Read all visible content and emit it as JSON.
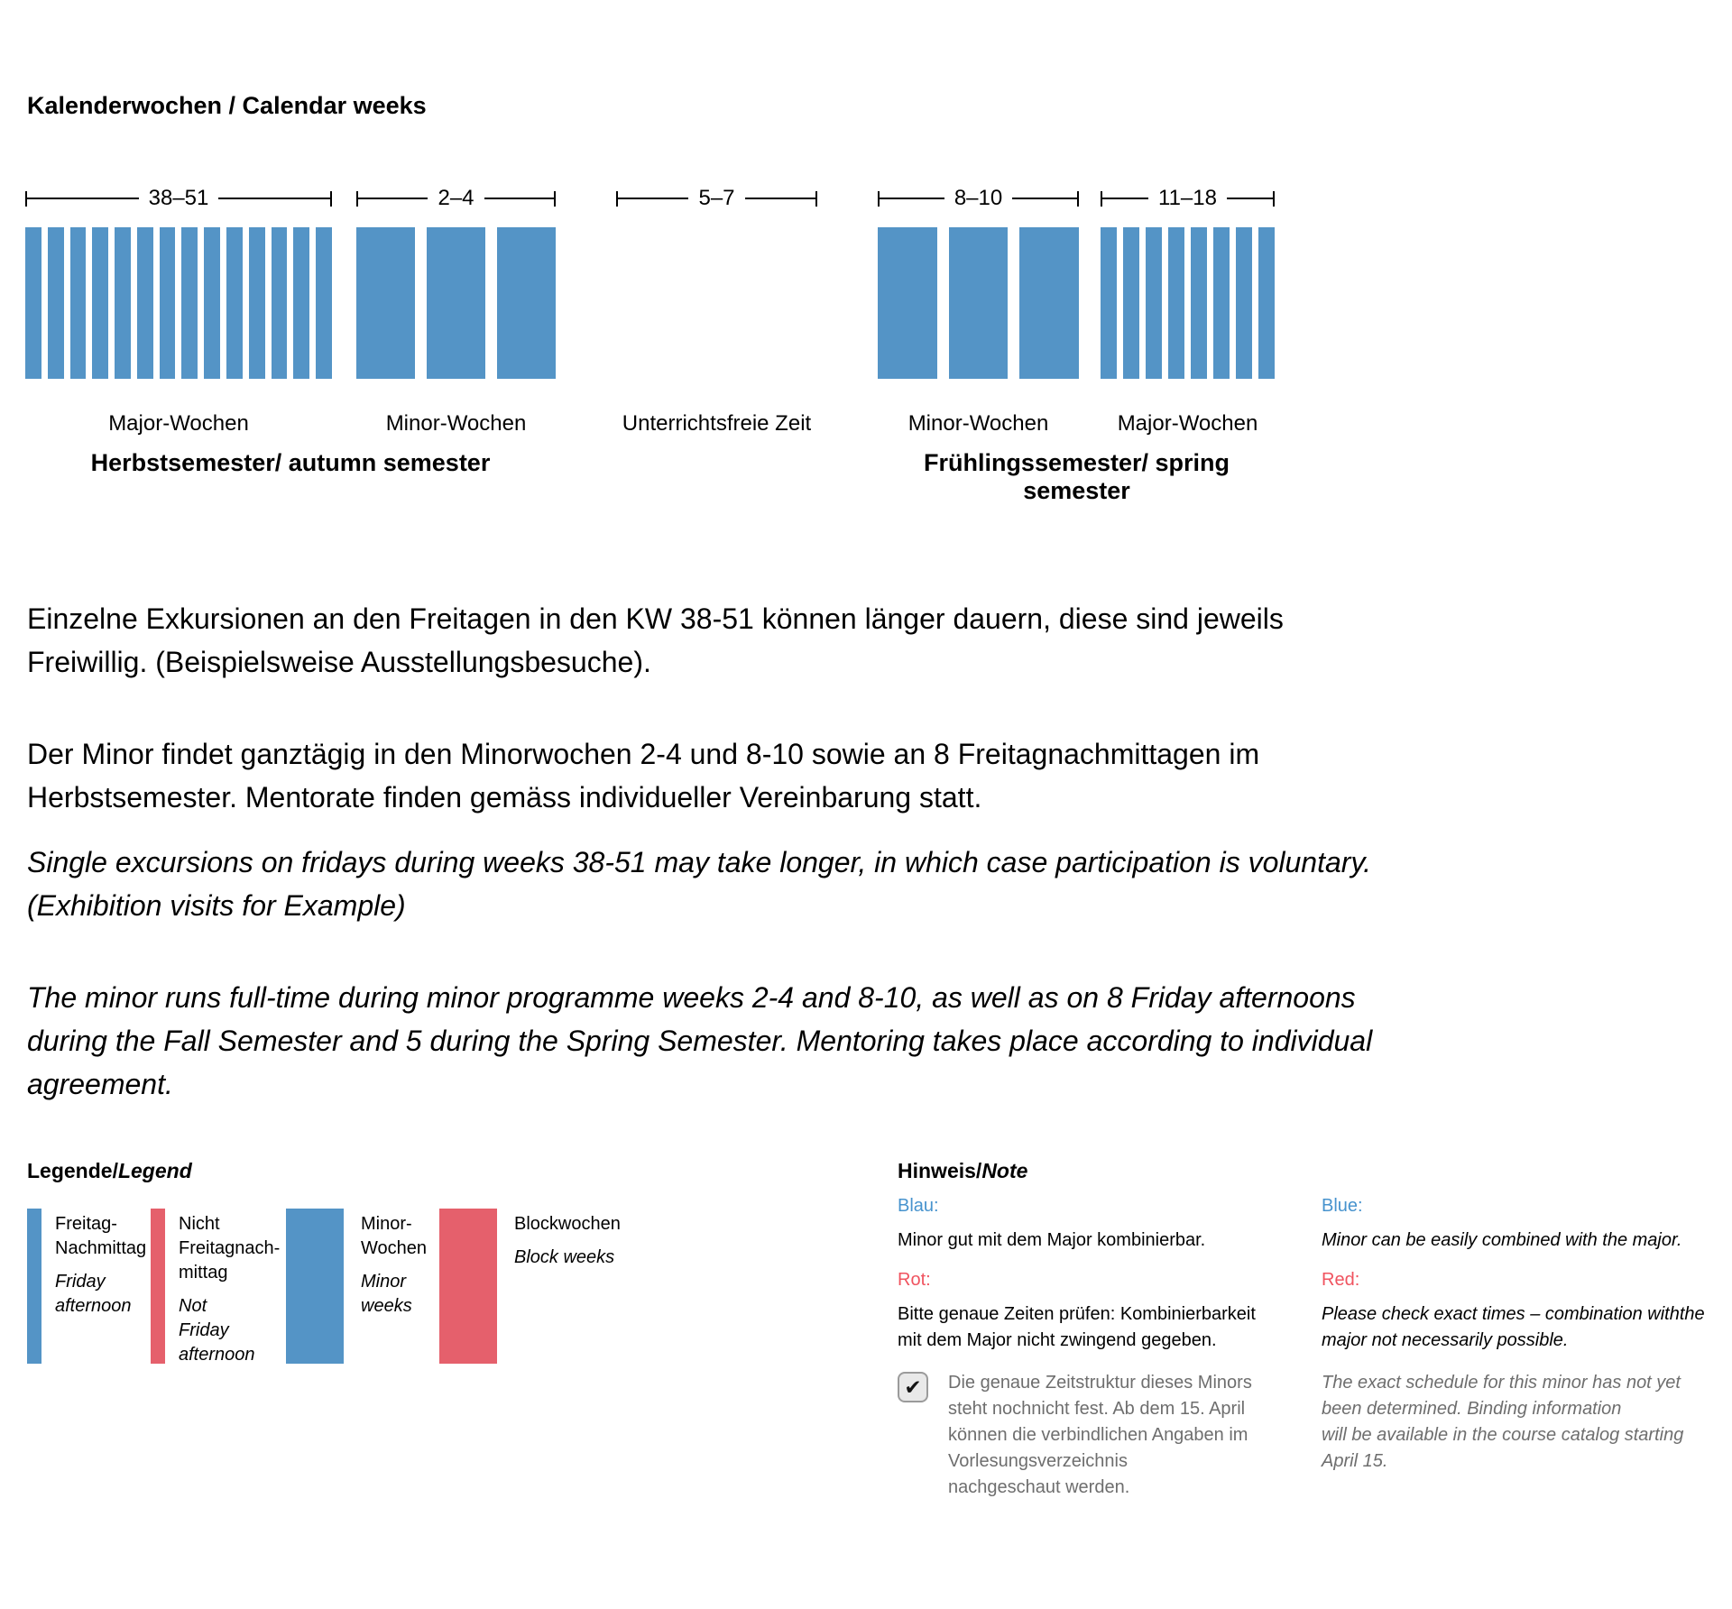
{
  "title": "Kalenderwochen / Calendar weeks",
  "chart_data": {
    "type": "bar",
    "title": "Kalenderwochen / Calendar weeks",
    "x_unit": "calendar week number",
    "groups": [
      {
        "range": "38–51",
        "weeks": 14,
        "bar_style": "thin",
        "label": "Major-Wochen",
        "semester": "autumn"
      },
      {
        "range": "2–4",
        "weeks": 3,
        "bar_style": "wide",
        "label": "Minor-Wochen",
        "semester": "autumn"
      },
      {
        "range": "5–7",
        "weeks": 0,
        "bar_style": "none",
        "label": "Unterrichtsfreie Zeit",
        "semester": ""
      },
      {
        "range": "8–10",
        "weeks": 3,
        "bar_style": "wide",
        "label": "Minor-Wochen",
        "semester": "spring"
      },
      {
        "range": "11–18",
        "weeks": 8,
        "bar_style": "thin",
        "label": "Major-Wochen",
        "semester": "spring"
      }
    ],
    "semesters": [
      {
        "label": "Herbstsemester/ autumn semester"
      },
      {
        "label": "Frühlingssemester/ spring semester"
      }
    ],
    "legend_note": "all bars blue"
  },
  "paragraphs": {
    "excursions_de": "Einzelne Exkursionen an den Freitagen in den KW 38-51 können länger dauern, diese sind jeweils\nFreiwillig. (Beispielsweise Ausstellungsbesuche).",
    "minor_de": "Der Minor findet ganztägig in den Minorwochen 2-4 und 8-10 sowie an 8 Freitagnachmittagen im\nHerbstsemester. Mentorate finden gemäss individueller Vereinbarung statt.",
    "excursions_en": "Single excursions on fridays during weeks 38-51 may take longer, in which case participation is voluntary.\n(Exhibition visits for Example)",
    "minor_en": "The minor runs full-time during minor programme weeks 2-4 and 8-10, as well as on 8 Friday afternoons\nduring the Fall Semester and 5 during the Spring Semester. Mentoring takes place according to individual\nagreement."
  },
  "legend": {
    "title_de": "Legende/",
    "title_en": "Legend",
    "items": [
      {
        "label_de": "Freitag-\nNachmittag",
        "label_en": "Friday\nafternoon"
      },
      {
        "label_de": "Nicht\nFreitagnach-\nmittag",
        "label_en": "Not\nFriday\nafternoon"
      },
      {
        "label_de": "Minor-\nWochen",
        "label_en": "Minor\nweeks"
      },
      {
        "label_de": "Blockwochen",
        "label_en": "Block weeks"
      }
    ]
  },
  "note": {
    "title_de": "Hinweis/",
    "title_en": "Note",
    "de": {
      "blue_label": "Blau:",
      "blue_text": "Minor gut mit dem Major kombinierbar.",
      "red_label": "Rot:",
      "red_text": "Bitte genaue Zeiten prüfen: Kombinierbarkeit\nmit dem Major nicht zwingend gegeben.",
      "checkbox_checked": true,
      "checkbox_text": "Die genaue Zeitstruktur dieses Minors\nsteht nochnicht fest. Ab dem 15. April\nkönnen die verbindlichen Angaben im\nVorlesungsverzeichnis\nnachgeschaut werden."
    },
    "en": {
      "blue_label": "Blue:",
      "blue_text": "Minor can be easily combined with the major.",
      "red_label": "Red:",
      "red_text": "Please check exact times – combination withthe\nmajor not necessarily possible.",
      "schedule_text": "The exact schedule for this minor has not yet\nbeen determined. Binding information\nwill be available in the course catalog starting\nApril 15."
    }
  },
  "icons": {
    "checkbox_check": "✔"
  },
  "colors": {
    "bar_blue": "#5494c6",
    "bar_red": "#e5606c",
    "text_blue": "#4793ce",
    "text_red": "#f0535f",
    "text_gray": "#6e6e6e"
  }
}
